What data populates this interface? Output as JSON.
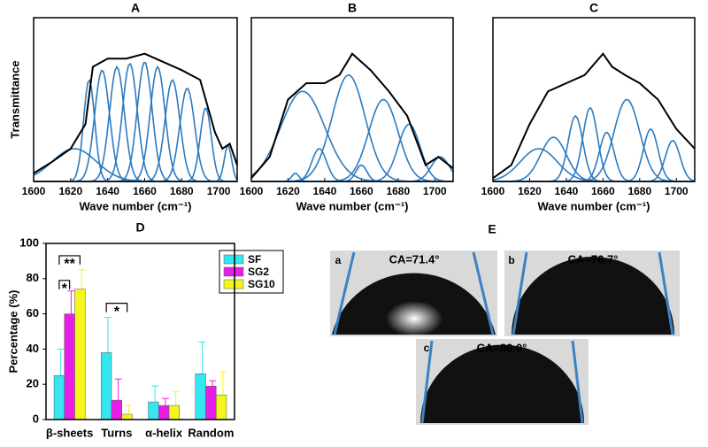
{
  "chart_data": [
    {
      "type": "spectrum",
      "title": "A",
      "ylabel": "Transmittance",
      "xlabel": "Wave number (cm⁻¹)",
      "xlim": [
        1600,
        1710
      ],
      "xticks": [
        1600,
        1620,
        1640,
        1660,
        1680,
        1700
      ],
      "ylim": [
        0,
        1
      ],
      "color": "#000000",
      "component_color": "#2b7bc0",
      "x": [
        1600,
        1610,
        1620,
        1628,
        1632,
        1640,
        1650,
        1660,
        1670,
        1680,
        1690,
        1698,
        1702,
        1706,
        1710
      ],
      "values": [
        0.05,
        0.12,
        0.2,
        0.35,
        0.7,
        0.75,
        0.75,
        0.78,
        0.73,
        0.68,
        0.62,
        0.3,
        0.2,
        0.23,
        0.1
      ],
      "components": [
        {
          "center": 1622,
          "height": 0.2,
          "width": 12
        },
        {
          "center": 1630,
          "height": 0.62,
          "width": 3
        },
        {
          "center": 1637,
          "height": 0.68,
          "width": 4
        },
        {
          "center": 1645,
          "height": 0.7,
          "width": 4
        },
        {
          "center": 1652,
          "height": 0.72,
          "width": 4
        },
        {
          "center": 1660,
          "height": 0.73,
          "width": 4
        },
        {
          "center": 1667,
          "height": 0.7,
          "width": 4
        },
        {
          "center": 1675,
          "height": 0.62,
          "width": 4
        },
        {
          "center": 1683,
          "height": 0.57,
          "width": 4
        },
        {
          "center": 1693,
          "height": 0.45,
          "width": 3
        },
        {
          "center": 1705,
          "height": 0.22,
          "width": 2
        }
      ]
    },
    {
      "type": "spectrum",
      "title": "B",
      "xlabel": "Wave number (cm⁻¹)",
      "xlim": [
        1600,
        1710
      ],
      "xticks": [
        1600,
        1620,
        1640,
        1660,
        1680,
        1700
      ],
      "ylim": [
        0,
        1
      ],
      "color": "#000000",
      "component_color": "#2b7bc0",
      "x": [
        1600,
        1610,
        1620,
        1630,
        1640,
        1648,
        1655,
        1665,
        1675,
        1685,
        1695,
        1702,
        1710
      ],
      "values": [
        0.02,
        0.15,
        0.5,
        0.6,
        0.6,
        0.65,
        0.78,
        0.68,
        0.55,
        0.4,
        0.1,
        0.15,
        0.08
      ],
      "components": [
        {
          "center": 1624,
          "height": 0.05,
          "width": 2
        },
        {
          "center": 1628,
          "height": 0.55,
          "width": 12
        },
        {
          "center": 1637,
          "height": 0.2,
          "width": 4
        },
        {
          "center": 1653,
          "height": 0.65,
          "width": 9
        },
        {
          "center": 1660,
          "height": 0.1,
          "width": 3
        },
        {
          "center": 1672,
          "height": 0.5,
          "width": 8
        },
        {
          "center": 1686,
          "height": 0.35,
          "width": 6
        },
        {
          "center": 1703,
          "height": 0.15,
          "width": 5
        }
      ]
    },
    {
      "type": "spectrum",
      "title": "C",
      "xlabel": "Wave number (cm⁻¹)",
      "xlim": [
        1600,
        1710
      ],
      "xticks": [
        1600,
        1620,
        1640,
        1660,
        1680,
        1700
      ],
      "ylim": [
        0,
        1
      ],
      "color": "#000000",
      "component_color": "#2b7bc0",
      "x": [
        1600,
        1610,
        1620,
        1630,
        1640,
        1650,
        1660,
        1665,
        1672,
        1680,
        1690,
        1700,
        1710
      ],
      "values": [
        0.02,
        0.1,
        0.35,
        0.55,
        0.6,
        0.65,
        0.78,
        0.7,
        0.65,
        0.6,
        0.5,
        0.32,
        0.2
      ],
      "components": [
        {
          "center": 1625,
          "height": 0.2,
          "width": 10
        },
        {
          "center": 1633,
          "height": 0.27,
          "width": 7
        },
        {
          "center": 1645,
          "height": 0.4,
          "width": 4
        },
        {
          "center": 1653,
          "height": 0.45,
          "width": 4
        },
        {
          "center": 1662,
          "height": 0.3,
          "width": 4
        },
        {
          "center": 1673,
          "height": 0.5,
          "width": 7
        },
        {
          "center": 1686,
          "height": 0.32,
          "width": 4
        },
        {
          "center": 1698,
          "height": 0.25,
          "width": 4
        }
      ]
    },
    {
      "type": "bar",
      "title": "D",
      "ylabel": "Percentage (%)",
      "categories": [
        "β-sheets",
        "Turns",
        "α-helix",
        "Random"
      ],
      "ylim": [
        0,
        100
      ],
      "yticks": [
        0,
        20,
        40,
        60,
        80,
        100
      ],
      "legend": "upper right",
      "series": [
        {
          "name": "SF",
          "color": "#33e6f0",
          "values": [
            25,
            38,
            10,
            26
          ],
          "errors": [
            15,
            20,
            9,
            18
          ]
        },
        {
          "name": "SG2",
          "color": "#e81ee8",
          "values": [
            60,
            11,
            8,
            19
          ],
          "errors": [
            13,
            12,
            4,
            3
          ]
        },
        {
          "name": "SG10",
          "color": "#f5f51e",
          "values": [
            74,
            3,
            8,
            14
          ],
          "errors": [
            11,
            5,
            8,
            13
          ]
        }
      ],
      "annotations": [
        {
          "text": "**",
          "category": 0,
          "series": [
            0,
            2
          ],
          "y": 93
        },
        {
          "text": "*",
          "category": 0,
          "series": [
            0,
            1
          ],
          "y": 79
        },
        {
          "text": "*",
          "category": 1,
          "series": [
            0,
            2
          ],
          "y": 66
        }
      ]
    }
  ],
  "panel_e": {
    "title": "E",
    "images": [
      {
        "label": "a",
        "text": "CA=71.4°"
      },
      {
        "label": "b",
        "text": "CA=76.7°"
      },
      {
        "label": "c",
        "text": "CA=80.0°"
      }
    ]
  }
}
